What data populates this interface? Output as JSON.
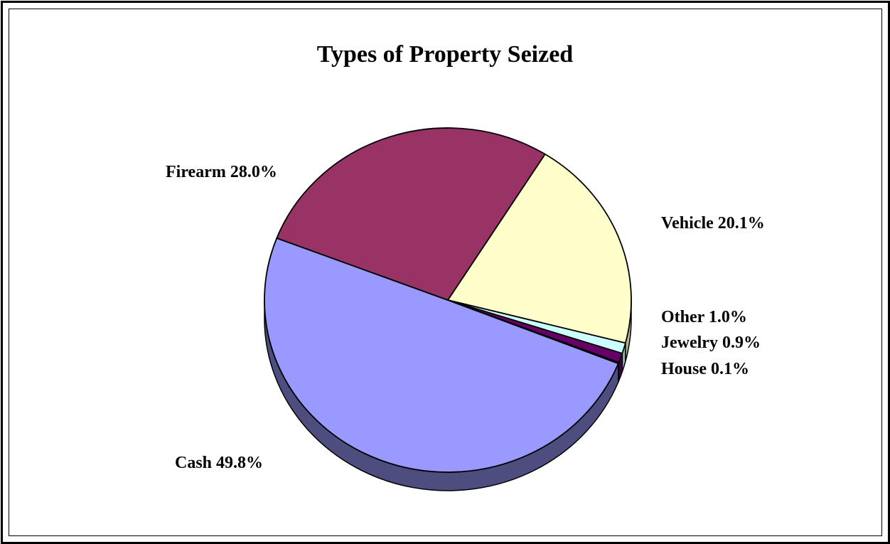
{
  "chart_data": {
    "type": "pie",
    "title": "Types of Property Seized",
    "slices": [
      {
        "label": "Vehicle",
        "value": 20.1,
        "display": "Vehicle 20.1%",
        "color": "#FFFFCC",
        "side": "#B3B38F"
      },
      {
        "label": "Other",
        "value": 1.0,
        "display": "Other 1.0%",
        "color": "#CCFFFF",
        "side": "#8FB3B3"
      },
      {
        "label": "Jewelry",
        "value": 0.9,
        "display": "Jewelry 0.9%",
        "color": "#660066",
        "side": "#470047"
      },
      {
        "label": "House",
        "value": 0.1,
        "display": "House 0.1%",
        "color": "#000080",
        "side": "#00005A"
      },
      {
        "label": "Cash",
        "value": 49.8,
        "display": "Cash 49.8%",
        "color": "#9999FF",
        "side": "#4D4D80"
      },
      {
        "label": "Firearm",
        "value": 28.0,
        "display": "Firearm 28.0%",
        "color": "#993366",
        "side": "#6B2447"
      }
    ],
    "legend": "none",
    "data_labels": "outside"
  }
}
